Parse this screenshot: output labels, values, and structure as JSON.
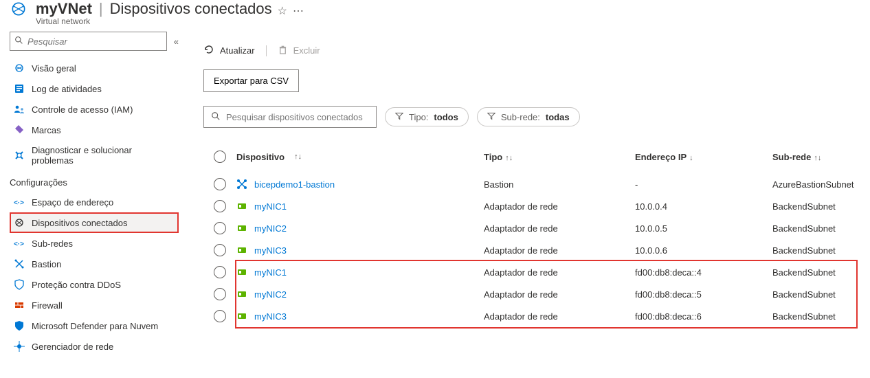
{
  "header": {
    "resource_name": "myVNet",
    "page_title": "Dispositivos conectados",
    "subtitle": "Virtual network"
  },
  "sidebar": {
    "search_placeholder": "Pesquisar",
    "top_items": [
      {
        "label": "Visão geral"
      },
      {
        "label": "Log de atividades"
      },
      {
        "label": "Controle de acesso (IAM)"
      },
      {
        "label": "Marcas"
      },
      {
        "label": "Diagnosticar e solucionar problemas"
      }
    ],
    "section_label": "Configurações",
    "settings_items": [
      {
        "label": "Espaço de endereço"
      },
      {
        "label": "Dispositivos conectados"
      },
      {
        "label": "Sub-redes"
      },
      {
        "label": "Bastion"
      },
      {
        "label": "Proteção contra DDoS"
      },
      {
        "label": "Firewall"
      },
      {
        "label": "Microsoft Defender para Nuvem"
      },
      {
        "label": "Gerenciador de rede"
      }
    ]
  },
  "toolbar": {
    "refresh": "Atualizar",
    "delete": "Excluir",
    "export": "Exportar para CSV"
  },
  "filters": {
    "search_placeholder": "Pesquisar dispositivos conectados",
    "type_label": "Tipo:",
    "type_value": "todos",
    "subnet_label": "Sub-rede:",
    "subnet_value": "todas"
  },
  "table": {
    "columns": {
      "device": "Dispositivo",
      "type": "Tipo",
      "ip": "Endereço IP",
      "subnet": "Sub-rede"
    },
    "rows": [
      {
        "icon": "bastion",
        "device": "bicepdemo1-bastion",
        "type": "Bastion",
        "ip": "-",
        "subnet": "AzureBastionSubnet"
      },
      {
        "icon": "nic",
        "device": "myNIC1",
        "type": "Adaptador de rede",
        "ip": "10.0.0.4",
        "subnet": "BackendSubnet"
      },
      {
        "icon": "nic",
        "device": "myNIC2",
        "type": "Adaptador de rede",
        "ip": "10.0.0.5",
        "subnet": "BackendSubnet"
      },
      {
        "icon": "nic",
        "device": "myNIC3",
        "type": "Adaptador de rede",
        "ip": "10.0.0.6",
        "subnet": "BackendSubnet"
      },
      {
        "icon": "nic",
        "device": "myNIC1",
        "type": "Adaptador de rede",
        "ip": "fd00:db8:deca::4",
        "subnet": "BackendSubnet"
      },
      {
        "icon": "nic",
        "device": "myNIC2",
        "type": "Adaptador de rede",
        "ip": "fd00:db8:deca::5",
        "subnet": "BackendSubnet"
      },
      {
        "icon": "nic",
        "device": "myNIC3",
        "type": "Adaptador de rede",
        "ip": "fd00:db8:deca::6",
        "subnet": "BackendSubnet"
      }
    ]
  },
  "colors": {
    "link": "#0078d4",
    "highlight_border": "#e1352f"
  }
}
